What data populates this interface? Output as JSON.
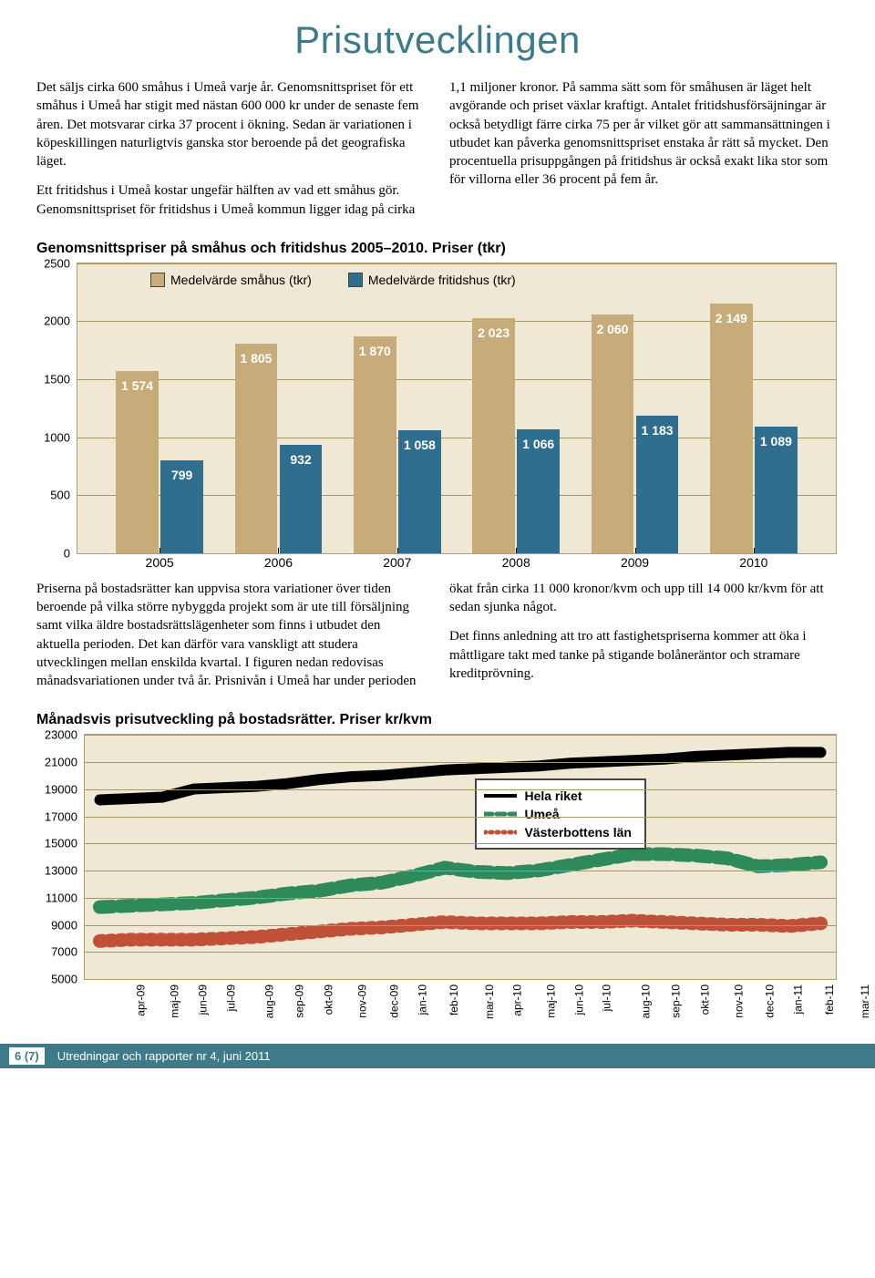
{
  "page_title": "Prisutvecklingen",
  "intro_para1": "Det säljs cirka 600 småhus i Umeå varje år. Genomsnittspriset för ett småhus i Umeå har stigit med nästan 600 000 kr under de senaste fem åren. Det motsvarar cirka 37 procent i ökning. Sedan är variationen i köpeskillingen naturligtvis ganska stor beroende på det geografiska läget.",
  "intro_para2": "Ett fritidshus i Umeå kostar ungefär hälften av vad ett småhus gör. Genomsnittspriset för fritidshus i Umeå kommun ligger idag på cirka 1,1 miljoner kronor. På samma sätt som för småhusen är läget helt avgörande och priset växlar kraftigt. Antalet fritidshusförsäjningar är också betydligt färre cirka 75 per år vilket gör att sammansättningen i utbudet kan påverka genomsnittspriset enstaka år rätt så mycket. Den procentuella prisuppgången på fritidshus är också exakt lika stor som för villorna eller 36 procent på fem år.",
  "bar_chart": {
    "title": "Genomsnittspriser på småhus och fritidshus 2005–2010. Priser (tkr)",
    "background_color": "#efe8d4",
    "grid_color": "#a89768",
    "ylim": [
      0,
      2500
    ],
    "ytick_step": 500,
    "yticks": [
      "0",
      "500",
      "1000",
      "1500",
      "2000",
      "2500"
    ],
    "categories": [
      "2005",
      "2006",
      "2007",
      "2008",
      "2009",
      "2010"
    ],
    "series": [
      {
        "name": "Medelvärde småhus (tkr)",
        "color": "#c7ac7a",
        "label_color": "#ffffff",
        "values": [
          1574,
          1805,
          1870,
          2023,
          2060,
          2149
        ],
        "labels": [
          "1 574",
          "1 805",
          "1 870",
          "2 023",
          "2 060",
          "2 149"
        ]
      },
      {
        "name": "Medelvärde fritidshus (tkr)",
        "color": "#2f6e8e",
        "label_color": "#ffffff",
        "values": [
          799,
          932,
          1058,
          1066,
          1183,
          1089
        ],
        "labels": [
          "799",
          "932",
          "1 058",
          "1 066",
          "1 183",
          "1 089"
        ]
      }
    ],
    "bar_width_pct": 5.6,
    "bar_gap_pct": 0.3,
    "x_label_fontsize": 14
  },
  "mid_para1": "Priserna på bostadsrätter kan uppvisa stora variationer över tiden beroende på vilka större nybyggda projekt som är ute till försäljning samt vilka äldre bostadsrättslägenheter som finns i utbudet den aktuella perioden. Det kan därför vara vanskligt att studera utvecklingen mellan enskilda kvartal. I figuren nedan redovisas månadsvariationen under två år. Prisnivån i Umeå har under perioden ökat från cirka 11 000 kronor/kvm och upp till 14 000 kr/kvm för att sedan sjunka något.",
  "mid_para2": "Det finns anledning att tro att fastighetspriserna kommer att öka i måttligare takt med tanke på stigande bolåneräntor och stramare kreditprövning.",
  "line_chart": {
    "title": "Månadsvis prisutveckling på bostadsrätter. Priser kr/kvm",
    "background_color": "#efe8d4",
    "grid_color": "#a89768",
    "ylim": [
      5000,
      23000
    ],
    "ytick_step": 2000,
    "yticks": [
      "5000",
      "7000",
      "9000",
      "11000",
      "13000",
      "15000",
      "17000",
      "19000",
      "21000",
      "23000"
    ],
    "x_labels": [
      "apr-09",
      "maj-09",
      "jun-09",
      "jul-09",
      "aug-09",
      "sep-09",
      "okt-09",
      "nov-09",
      "dec-09",
      "jan-10",
      "feb-10",
      "mar-10",
      "apr-10",
      "maj-10",
      "jun-10",
      "jul-10",
      "aug-10",
      "sep-10",
      "okt-10",
      "nov-10",
      "dec-10",
      "jan-11",
      "feb-11",
      "mar-11"
    ],
    "legend_position": {
      "left_pct": 52,
      "top_pct": 18
    },
    "series": [
      {
        "name": "Hela riket",
        "color": "#000000",
        "style": "solid",
        "width": 4,
        "values": [
          18200,
          18300,
          18400,
          19000,
          19100,
          19200,
          19400,
          19700,
          19900,
          20000,
          20200,
          20400,
          20500,
          20600,
          20700,
          20900,
          21000,
          21100,
          21200,
          21400,
          21500,
          21600,
          21700,
          21700
        ]
      },
      {
        "name": "Umeå",
        "color": "#2f8a5a",
        "style": "dash",
        "width": 5,
        "values": [
          10300,
          10400,
          10500,
          10600,
          10800,
          11000,
          11300,
          11500,
          11900,
          12100,
          12600,
          13200,
          12900,
          12800,
          13000,
          13400,
          13800,
          14200,
          14200,
          14100,
          13900,
          13300,
          13400,
          13600
        ]
      },
      {
        "name": "Västerbottens län",
        "color": "#c05038",
        "style": "dot",
        "width": 5,
        "values": [
          7800,
          7900,
          7900,
          7900,
          8000,
          8100,
          8300,
          8500,
          8700,
          8800,
          9000,
          9200,
          9100,
          9100,
          9100,
          9200,
          9200,
          9300,
          9200,
          9100,
          9000,
          9000,
          8900,
          9100
        ]
      }
    ]
  },
  "footer": {
    "page": "6 (7)",
    "text": "Utredningar och rapporter nr 4, juni 2011"
  }
}
